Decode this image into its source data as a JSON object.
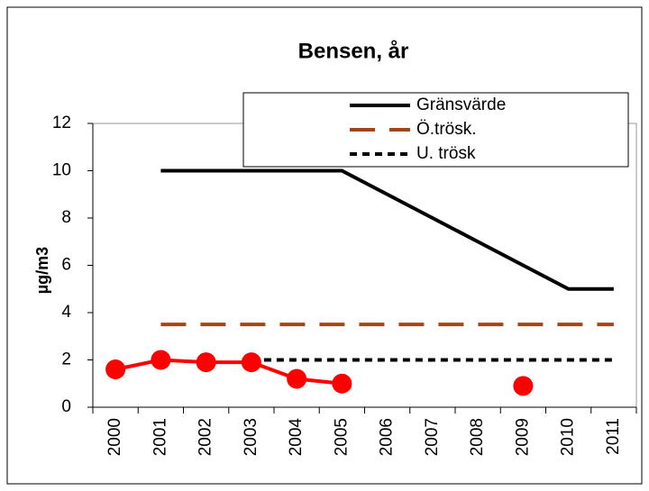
{
  "chart_data": {
    "type": "line",
    "title": "Bensen, år",
    "y_label": "µg/m3",
    "categories": [
      "2000",
      "2001",
      "2002",
      "2003",
      "2004",
      "2005",
      "2006",
      "2007",
      "2008",
      "2009",
      "2010",
      "2011"
    ],
    "series": [
      {
        "name": "Gränsvärde",
        "color": "#000000",
        "line_style": "solid",
        "values": [
          null,
          10,
          10,
          10,
          10,
          10,
          9,
          8,
          7,
          6,
          5,
          5
        ]
      },
      {
        "name": "Ö.trösk.",
        "color": "#a0461b",
        "line_style": "long-dash",
        "values": [
          null,
          3.5,
          3.5,
          3.5,
          3.5,
          3.5,
          3.5,
          3.5,
          3.5,
          3.5,
          3.5,
          3.5
        ]
      },
      {
        "name": "U. trösk",
        "color": "#000000",
        "line_style": "short-dash",
        "values": [
          null,
          null,
          null,
          2,
          2,
          2,
          2,
          2,
          2,
          2,
          2,
          2
        ]
      },
      {
        "color": "#ff0000",
        "line_style": "solid",
        "marker": "circle",
        "values": [
          1.6,
          2.0,
          1.9,
          1.9,
          1.2,
          1.0,
          null,
          null,
          null,
          0.9,
          null,
          null
        ]
      }
    ],
    "ylim": [
      0,
      12
    ],
    "yticks": [
      0,
      2,
      4,
      6,
      8,
      10,
      12
    ],
    "legend": "top-right"
  }
}
